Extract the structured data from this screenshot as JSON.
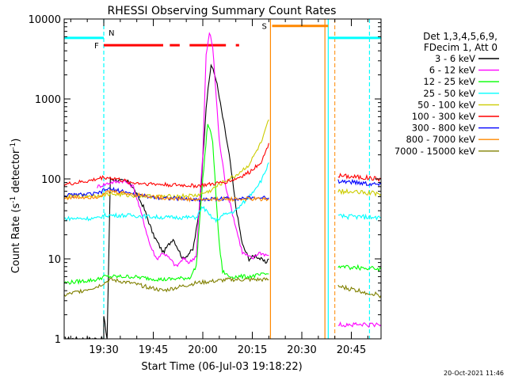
{
  "chart_data": {
    "type": "line",
    "title": "RHESSI Observing Summary Count Rates",
    "xlabel": "Start Time (06-Jul-03 19:18:22)",
    "ylabel_main": "Count Rate (s",
    "ylabel_sup1": "-1",
    "ylabel_mid": " detector",
    "ylabel_sup2": "-1",
    "ylabel_end": ")",
    "yscale": "log",
    "ylim": [
      1,
      10000
    ],
    "xlim_minutes": [
      0,
      96
    ],
    "x_ticks": [
      {
        "label": "19:30",
        "t": 12
      },
      {
        "label": "19:45",
        "t": 27
      },
      {
        "label": "20:00",
        "t": 42
      },
      {
        "label": "20:15",
        "t": 57
      },
      {
        "label": "20:30",
        "t": 72
      },
      {
        "label": "20:45",
        "t": 87
      }
    ],
    "y_ticks": [
      {
        "label": "1",
        "v": 1
      },
      {
        "label": "10",
        "v": 10
      },
      {
        "label": "100",
        "v": 100
      },
      {
        "label": "1000",
        "v": 1000
      },
      {
        "label": "10000",
        "v": 10000
      }
    ],
    "legend_header": [
      "Det 1,3,4,5,6,9,",
      "FDecim 1, Att 0"
    ],
    "legend_placement": "right",
    "series": [
      {
        "name": "3 - 6 keV",
        "color": "#000000",
        "points": [
          [
            0,
            1
          ],
          [
            12,
            1
          ],
          [
            12,
            1.9
          ],
          [
            13,
            1
          ],
          [
            14,
            100
          ],
          [
            20,
            90
          ],
          [
            24,
            45
          ],
          [
            27,
            20
          ],
          [
            30,
            12
          ],
          [
            33,
            18
          ],
          [
            36,
            10
          ],
          [
            39,
            13
          ],
          [
            41,
            40
          ],
          [
            43,
            800
          ],
          [
            44.5,
            2700
          ],
          [
            46,
            1800
          ],
          [
            48,
            600
          ],
          [
            50,
            200
          ],
          [
            52,
            45
          ],
          [
            54,
            15
          ],
          [
            56,
            10
          ],
          [
            58,
            11
          ],
          [
            61,
            9
          ],
          [
            62,
            10
          ]
        ]
      },
      {
        "name": "6 - 12 keV",
        "color": "#ff00ff",
        "points": [
          [
            10,
            80
          ],
          [
            14,
            90
          ],
          [
            18,
            95
          ],
          [
            21,
            80
          ],
          [
            24,
            30
          ],
          [
            26,
            15
          ],
          [
            28,
            10
          ],
          [
            30,
            12
          ],
          [
            32,
            10
          ],
          [
            34,
            8
          ],
          [
            36,
            10
          ],
          [
            38,
            9
          ],
          [
            40,
            11
          ],
          [
            42,
            200
          ],
          [
            43,
            3500
          ],
          [
            44,
            6800
          ],
          [
            45,
            4500
          ],
          [
            47,
            300
          ],
          [
            49,
            80
          ],
          [
            52,
            25
          ],
          [
            54,
            12
          ],
          [
            57,
            10
          ],
          [
            59,
            12
          ],
          [
            62,
            11
          ]
        ]
      },
      {
        "name": "12 - 25 keV",
        "color": "#00ff00",
        "points": [
          [
            0,
            5
          ],
          [
            10,
            5.5
          ],
          [
            12,
            6
          ],
          [
            20,
            6
          ],
          [
            30,
            5.5
          ],
          [
            38,
            5.8
          ],
          [
            40,
            8
          ],
          [
            42,
            100
          ],
          [
            43.5,
            500
          ],
          [
            45,
            300
          ],
          [
            46,
            60
          ],
          [
            47,
            15
          ],
          [
            48,
            7
          ],
          [
            50,
            6
          ],
          [
            56,
            6
          ],
          [
            62,
            6.5
          ]
        ]
      },
      {
        "name": "25 - 50 keV",
        "color": "#00ffff",
        "points": [
          [
            0,
            32
          ],
          [
            10,
            32
          ],
          [
            12,
            35
          ],
          [
            20,
            35
          ],
          [
            30,
            33
          ],
          [
            40,
            33
          ],
          [
            42,
            45
          ],
          [
            44,
            35
          ],
          [
            46,
            30
          ],
          [
            48,
            35
          ],
          [
            52,
            40
          ],
          [
            56,
            60
          ],
          [
            60,
            100
          ],
          [
            62,
            160
          ]
        ]
      },
      {
        "name": "50 - 100 keV",
        "color": "#cccc00",
        "points": [
          [
            0,
            60
          ],
          [
            10,
            62
          ],
          [
            14,
            65
          ],
          [
            20,
            62
          ],
          [
            30,
            60
          ],
          [
            40,
            62
          ],
          [
            44,
            70
          ],
          [
            48,
            90
          ],
          [
            52,
            110
          ],
          [
            56,
            150
          ],
          [
            60,
            300
          ],
          [
            62,
            550
          ]
        ]
      },
      {
        "name": "100 - 300 keV",
        "color": "#ff0000",
        "points": [
          [
            0,
            85
          ],
          [
            8,
            95
          ],
          [
            12,
            105
          ],
          [
            16,
            100
          ],
          [
            20,
            90
          ],
          [
            30,
            85
          ],
          [
            40,
            82
          ],
          [
            44,
            85
          ],
          [
            48,
            90
          ],
          [
            52,
            100
          ],
          [
            56,
            120
          ],
          [
            60,
            170
          ],
          [
            62,
            280
          ]
        ]
      },
      {
        "name": "300 - 800 keV",
        "color": "#0000ff",
        "points": [
          [
            0,
            62
          ],
          [
            10,
            65
          ],
          [
            13,
            75
          ],
          [
            18,
            70
          ],
          [
            22,
            62
          ],
          [
            30,
            58
          ],
          [
            40,
            55
          ],
          [
            50,
            57
          ],
          [
            62,
            58
          ]
        ]
      },
      {
        "name": "800 - 7000 keV",
        "color": "#ff8800",
        "points": [
          [
            0,
            58
          ],
          [
            10,
            60
          ],
          [
            14,
            70
          ],
          [
            20,
            65
          ],
          [
            30,
            58
          ],
          [
            40,
            55
          ],
          [
            50,
            56
          ],
          [
            62,
            56
          ]
        ]
      },
      {
        "name": "7000 - 15000 keV",
        "color": "#808000",
        "points": [
          [
            0,
            3.5
          ],
          [
            10,
            4.5
          ],
          [
            14,
            5.5
          ],
          [
            20,
            5
          ],
          [
            30,
            4
          ],
          [
            40,
            5
          ],
          [
            50,
            5.5
          ],
          [
            62,
            5.5
          ]
        ]
      }
    ],
    "post_gap_series": [
      {
        "color": "#ff0000",
        "points": [
          [
            83,
            110
          ],
          [
            96,
            100
          ]
        ]
      },
      {
        "color": "#0000ff",
        "points": [
          [
            83,
            95
          ],
          [
            96,
            85
          ]
        ]
      },
      {
        "color": "#cccc00",
        "points": [
          [
            83,
            70
          ],
          [
            96,
            65
          ]
        ]
      },
      {
        "color": "#00ffff",
        "points": [
          [
            83,
            34
          ],
          [
            96,
            33
          ]
        ]
      },
      {
        "color": "#00ff00",
        "points": [
          [
            83,
            8
          ],
          [
            96,
            7.5
          ]
        ]
      },
      {
        "color": "#808000",
        "points": [
          [
            83,
            4.5
          ],
          [
            96,
            3.5
          ]
        ]
      },
      {
        "color": "#ff00ff",
        "points": [
          [
            83,
            1.5
          ],
          [
            96,
            1.5
          ]
        ]
      }
    ],
    "annotations": {
      "N_label": "N",
      "F_label": "F",
      "S_label": "S",
      "night_bars": [
        [
          0,
          12
        ],
        [
          80,
          96
        ]
      ],
      "night_bar_level": 5800,
      "flare_segments": [
        [
          12,
          30
        ],
        [
          32,
          35
        ],
        [
          38,
          49
        ],
        [
          52,
          53
        ]
      ],
      "flare_level": 4700,
      "saa_bar": [
        63,
        80
      ],
      "saa_level": 8200,
      "cyan_vlines": [
        12,
        80,
        92.5
      ],
      "cyan_dashed": [
        12,
        92.5
      ],
      "orange_vlines": [
        62.5,
        79
      ],
      "orange_dashed": [
        82
      ]
    },
    "grid": false
  },
  "footer": {
    "timestamp": "20-Oct-2021 11:46"
  }
}
